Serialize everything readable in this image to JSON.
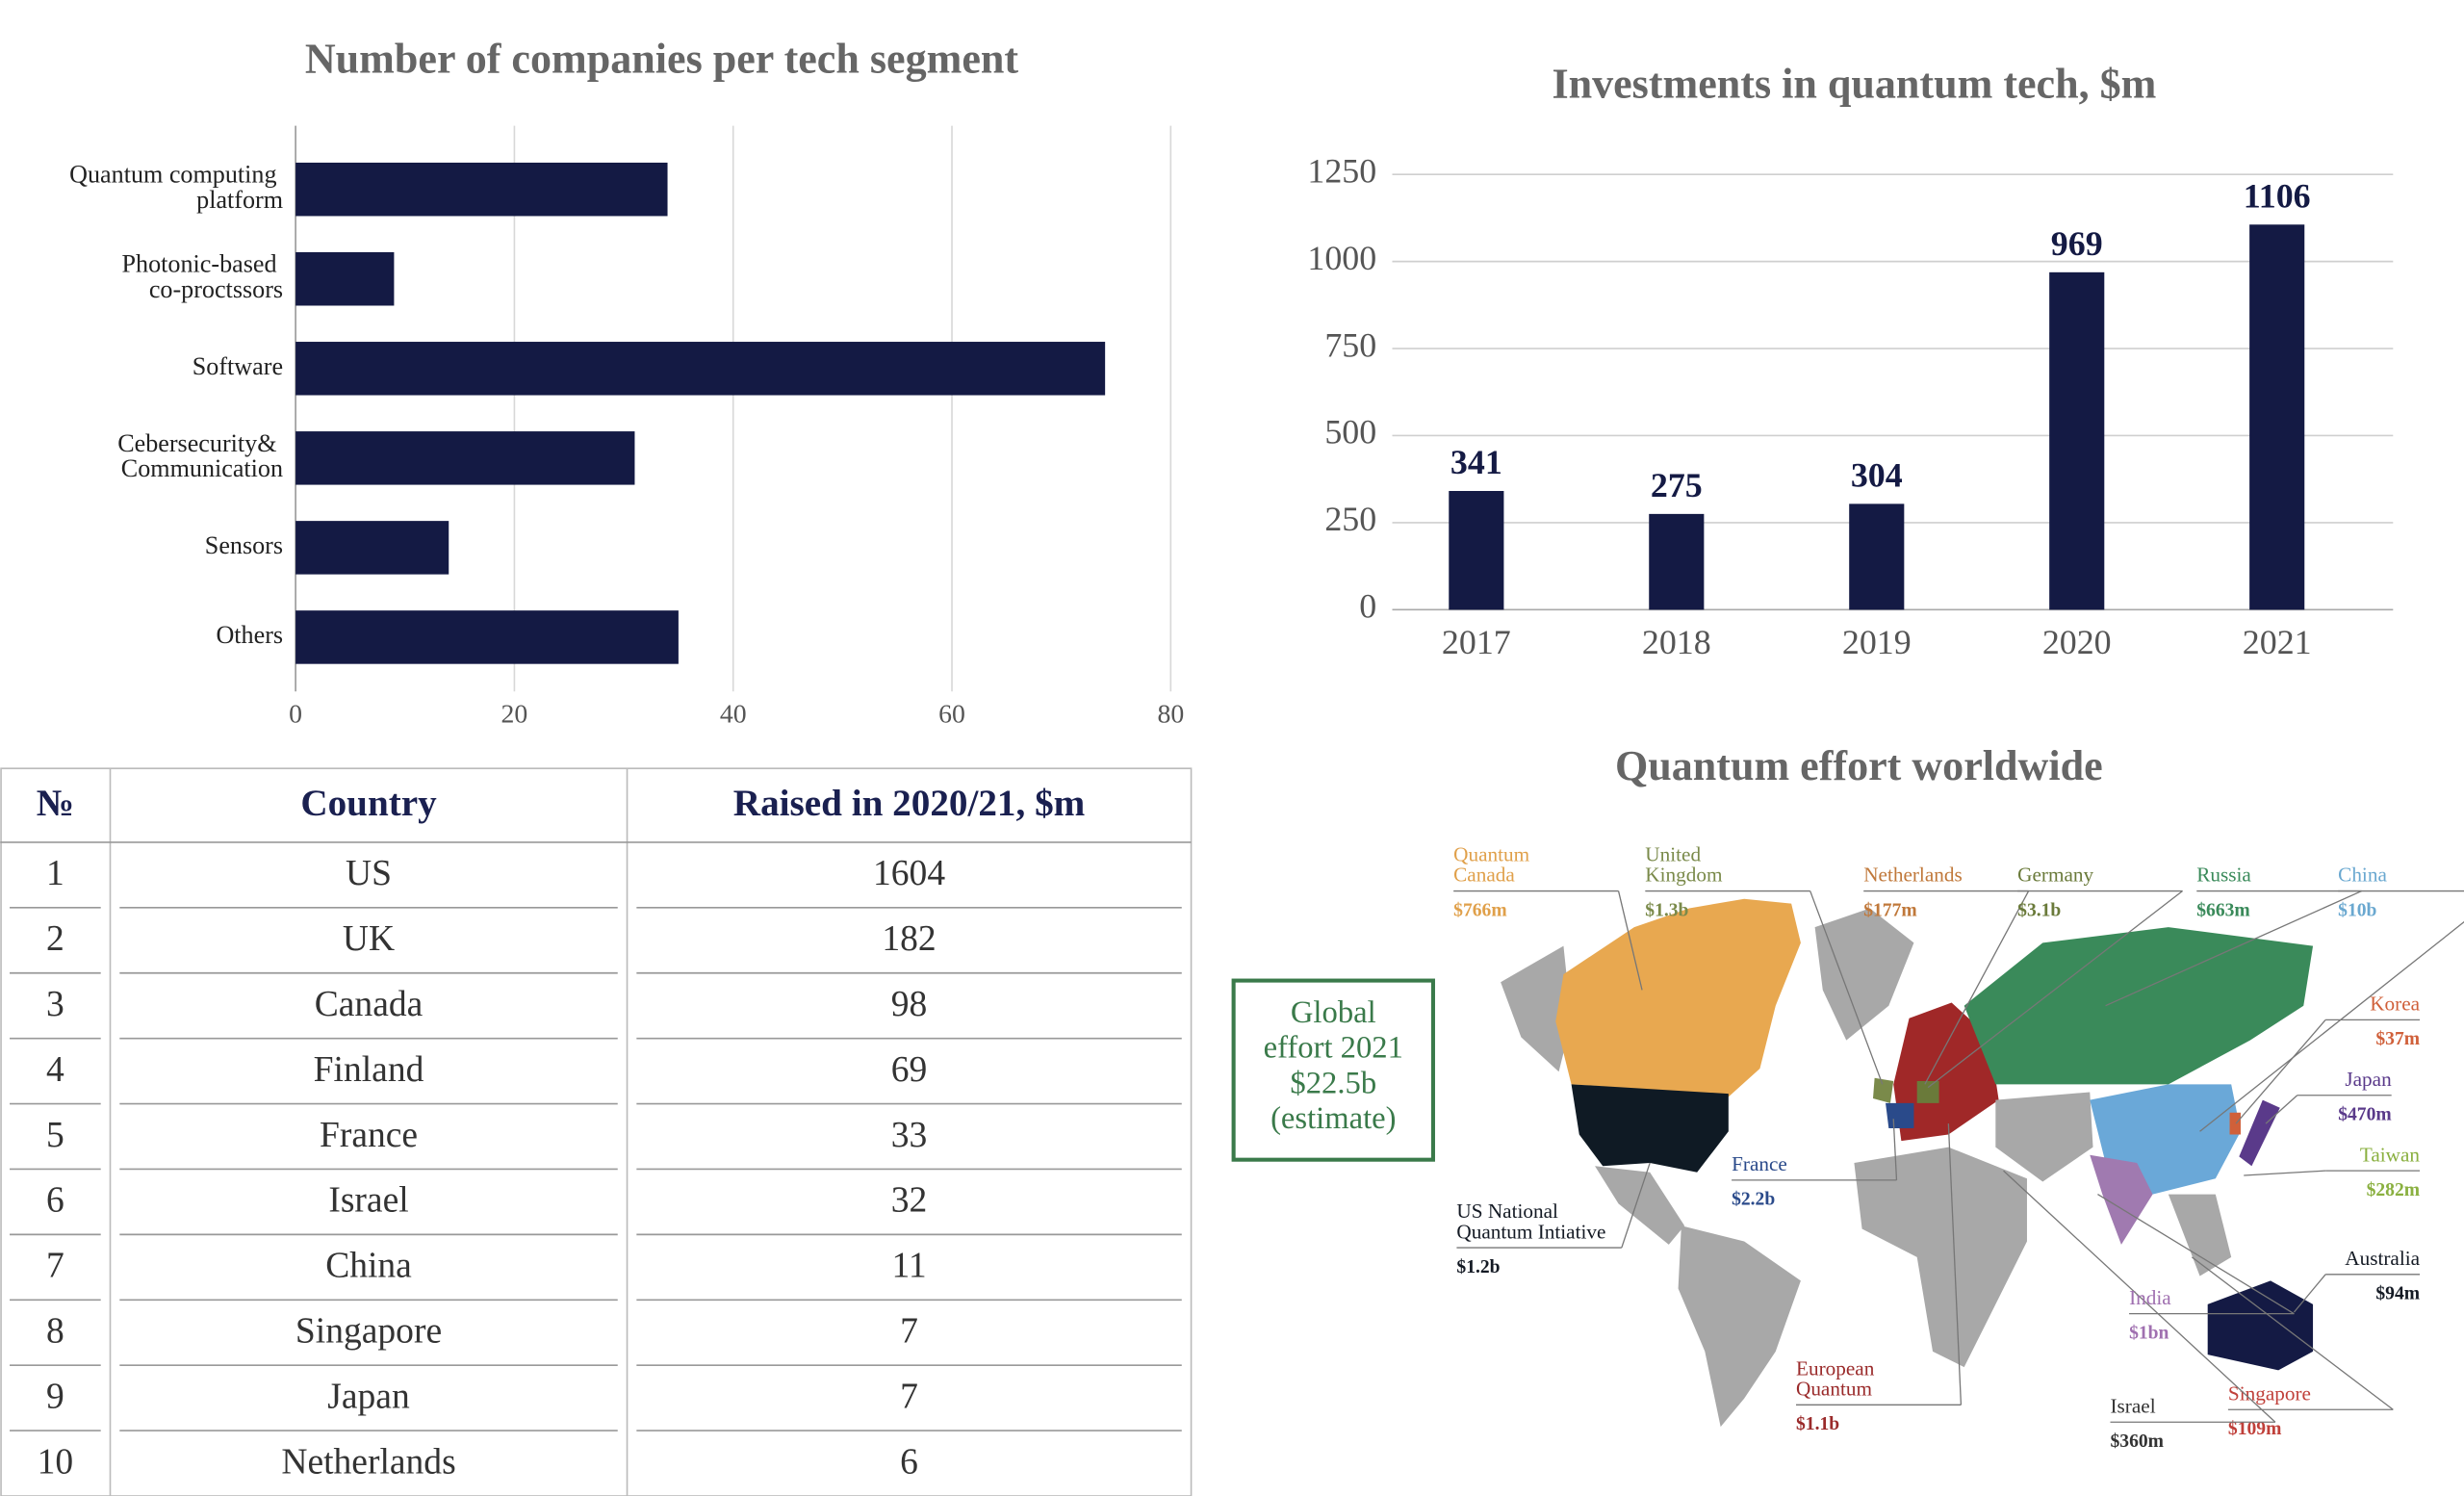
{
  "chart_data": [
    {
      "type": "barh",
      "title": "Number of companies per tech segment",
      "categories": [
        "Quantum computing platform",
        "Photonic-based co-proctssors",
        "Software",
        "Cebersecurity& Communication",
        "Sensors",
        "Others"
      ],
      "values": [
        34,
        9,
        74,
        31,
        14,
        35
      ],
      "color": "#141a44",
      "xlim": [
        0,
        80
      ],
      "xticks": [
        0,
        20,
        40,
        60,
        80
      ],
      "grid": true
    },
    {
      "type": "bar",
      "title": "Investments in quantum tech, $m",
      "categories": [
        "2017",
        "2018",
        "2019",
        "2020",
        "2021"
      ],
      "values": [
        341,
        275,
        304,
        969,
        1106
      ],
      "color": "#141a44",
      "ylim": [
        0,
        1250
      ],
      "yticks": [
        0,
        250,
        500,
        750,
        1000,
        1250
      ],
      "grid": true
    }
  ],
  "table": {
    "header": [
      "№",
      "Country",
      "Raised in 2020/21, $m"
    ],
    "rows": [
      [
        1,
        "US",
        1604
      ],
      [
        2,
        "UK",
        182
      ],
      [
        3,
        "Canada",
        98
      ],
      [
        4,
        "Finland",
        69
      ],
      [
        5,
        "France",
        33
      ],
      [
        6,
        "Israel",
        32
      ],
      [
        7,
        "China",
        11
      ],
      [
        8,
        "Singapore",
        7
      ],
      [
        9,
        "Japan",
        7
      ],
      [
        10,
        "Netherlands",
        6
      ]
    ]
  },
  "map": {
    "title": "Quantum effort worldwide",
    "callout": [
      "Global",
      "effort 2021",
      "$22.5b",
      "(estimate)"
    ],
    "labels": [
      {
        "name": [
          "Quantum",
          "Canada"
        ],
        "amount": "$766m",
        "color": "#e0a04a"
      },
      {
        "name": [
          "United",
          "Kingdom"
        ],
        "amount": "$1.3b",
        "color": "#7a8a4a"
      },
      {
        "name": [
          "Netherlands"
        ],
        "amount": "$177m",
        "color": "#c0783a"
      },
      {
        "name": [
          "Germany"
        ],
        "amount": "$3.1b",
        "color": "#6a7a3a"
      },
      {
        "name": [
          "Russia"
        ],
        "amount": "$663m",
        "color": "#3a8a5a"
      },
      {
        "name": [
          "China"
        ],
        "amount": "$10b",
        "color": "#6aa8d0"
      },
      {
        "name": [
          "Korea"
        ],
        "amount": "$37m",
        "color": "#d0603a"
      },
      {
        "name": [
          "Japan"
        ],
        "amount": "$470m",
        "color": "#5a3a8a"
      },
      {
        "name": [
          "Taiwan"
        ],
        "amount": "$282m",
        "color": "#8ab040"
      },
      {
        "name": [
          "Australia"
        ],
        "amount": "$94m",
        "color": "#141a24"
      },
      {
        "name": [
          "Singapore"
        ],
        "amount": "$109m",
        "color": "#c0403a"
      },
      {
        "name": [
          "Israel"
        ],
        "amount": "$360m",
        "color": "#333333"
      },
      {
        "name": [
          "India"
        ],
        "amount": "$1bn",
        "color": "#a070b0"
      },
      {
        "name": [
          "European",
          "Quantum"
        ],
        "amount": "$1.1b",
        "color": "#9a2a2a"
      },
      {
        "name": [
          "France"
        ],
        "amount": "$2.2b",
        "color": "#2a4a8a"
      },
      {
        "name": [
          "US National",
          "Quantum Intiative"
        ],
        "amount": "$1.2b",
        "color": "#141a24"
      }
    ]
  }
}
